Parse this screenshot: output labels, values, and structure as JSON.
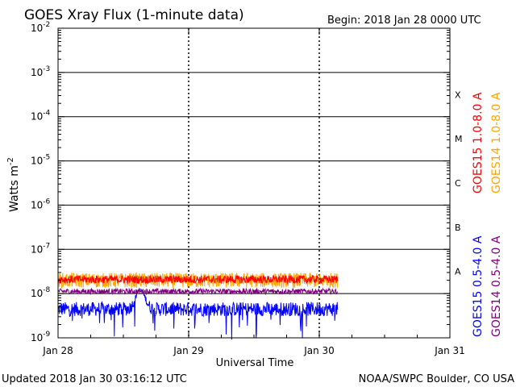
{
  "chart_data": {
    "type": "line",
    "title": "GOES Xray Flux (1-minute data)",
    "begin_label": "Begin:  2018 Jan 28 0000 UTC",
    "xlabel": "Universal Time",
    "ylabel": "Watts m",
    "ylabel_sup": "-2",
    "x_ticks": [
      "Jan 28",
      "Jan 29",
      "Jan 30",
      "Jan 31"
    ],
    "x_range_days": [
      0,
      3
    ],
    "data_end_day": 2.14,
    "y_scale": "log",
    "y_ticks": [
      {
        "base": "10",
        "exp": "-9"
      },
      {
        "base": "10",
        "exp": "-8"
      },
      {
        "base": "10",
        "exp": "-7"
      },
      {
        "base": "10",
        "exp": "-6"
      },
      {
        "base": "10",
        "exp": "-5"
      },
      {
        "base": "10",
        "exp": "-4"
      },
      {
        "base": "10",
        "exp": "-3"
      },
      {
        "base": "10",
        "exp": "-2"
      }
    ],
    "ylim_log10": [
      -9,
      -2
    ],
    "flare_classes": [
      "A",
      "B",
      "C",
      "M",
      "X"
    ],
    "grid": true,
    "series": [
      {
        "name": "GOES15 1.0-8.0 A",
        "color": "#ff0000",
        "base_log10": -7.68,
        "noise": 0.09
      },
      {
        "name": "GOES14 1.0-8.0 A",
        "color": "#ffa500",
        "base_log10": -7.7,
        "noise": 0.17
      },
      {
        "name": "GOES15 0.5-4.0 A",
        "color": "#0000ff",
        "base_log10": -8.35,
        "noise": 0.16,
        "bump_day": 0.63,
        "bump_log10": -7.9
      },
      {
        "name": "GOES14 0.5-4.0 A",
        "color": "#800080",
        "base_log10": -7.95,
        "noise": 0.06
      }
    ]
  },
  "footer": {
    "updated": "Updated 2018 Jan 30 03:16:12 UTC",
    "credit": "NOAA/SWPC Boulder, CO USA"
  }
}
